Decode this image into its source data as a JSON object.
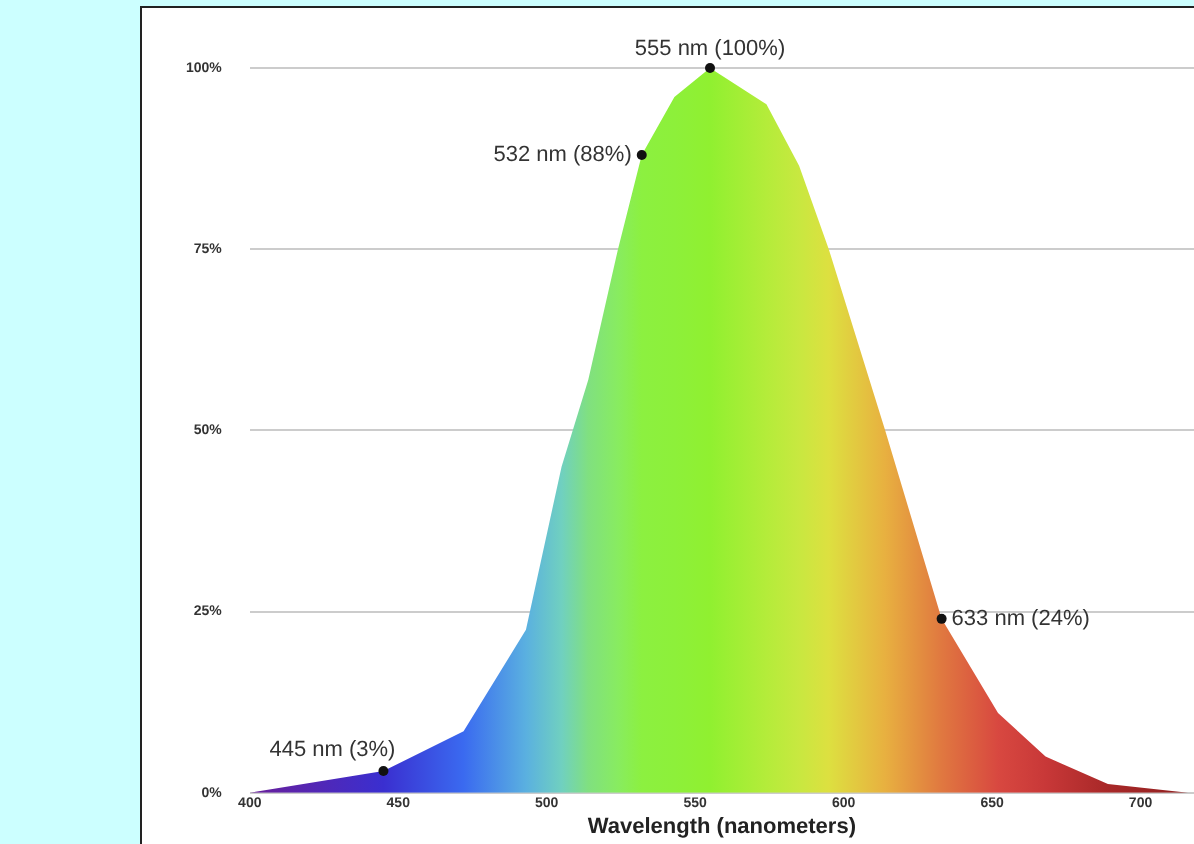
{
  "chart_data": {
    "type": "area",
    "xlabel": "Wavelength (nanometers)",
    "x": [
      400,
      445,
      472,
      493,
      505,
      514,
      524,
      532,
      543,
      555,
      574,
      585,
      595,
      614,
      633,
      652,
      668,
      689,
      716
    ],
    "series": [
      {
        "values": [
          0,
          3,
          8.5,
          22.5,
          45,
          57,
          75,
          88,
          96,
          100,
          95,
          86.5,
          75,
          50,
          24,
          11,
          5,
          1.2,
          0
        ],
        "colors": [
          "#6a1f9a",
          "#3a2fd0",
          "#3a6af0",
          "#5ab0e0",
          "#70d0c0",
          "#80e080",
          "#88ec60",
          "#8cf040",
          "#8df03a",
          "#90f030",
          "#b4ec3a",
          "#c8e840",
          "#dde040",
          "#e8b040",
          "#e07840",
          "#d84840",
          "#c83838",
          "#a82828",
          "#902020"
        ]
      }
    ],
    "xlim": [
      400,
      718
    ],
    "xticks": [
      400,
      450,
      500,
      550,
      600,
      650,
      700
    ],
    "ylim": [
      0,
      100
    ],
    "yticks": [
      {
        "value": 0,
        "label": "0%"
      },
      {
        "value": 25,
        "label": "25%"
      },
      {
        "value": 50,
        "label": "50%"
      },
      {
        "value": 75,
        "label": "75%"
      },
      {
        "value": 100,
        "label": "100%"
      }
    ],
    "grid": "y",
    "marker": "none",
    "annotations": [
      {
        "text": "445 nm (3%)",
        "x": 445,
        "y": 3
      },
      {
        "text": "532 nm (88%)",
        "x": 532,
        "y": 88
      },
      {
        "text": "555 nm (100%)",
        "x": 555,
        "y": 100
      },
      {
        "text": "633 nm (24%)",
        "x": 633,
        "y": 24
      }
    ]
  }
}
